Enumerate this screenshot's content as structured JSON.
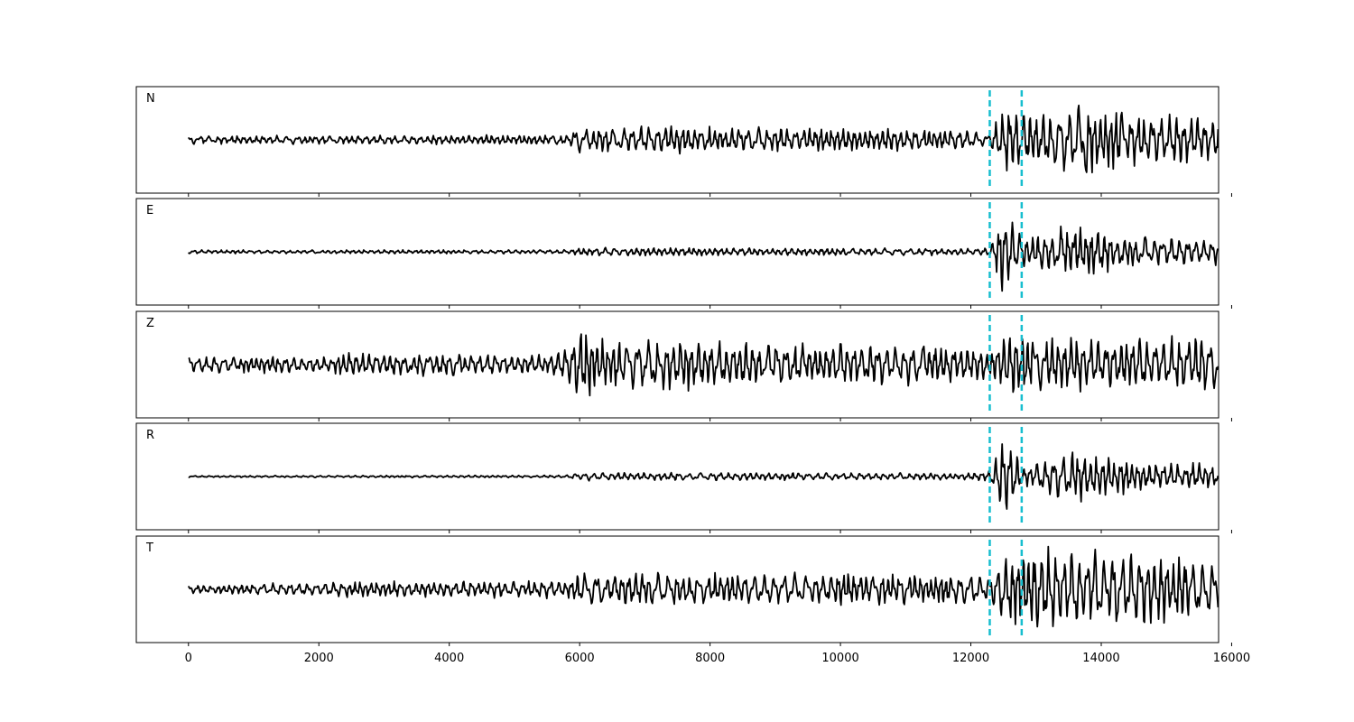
{
  "chart_data": {
    "type": "line",
    "title": "",
    "xlabel": "",
    "ylabel": "",
    "xlim": [
      -800,
      15800
    ],
    "xticks": [
      0,
      2000,
      4000,
      6000,
      8000,
      10000,
      12000,
      14000,
      16000
    ],
    "xtick_labels": [
      "0",
      "2000",
      "4000",
      "6000",
      "8000",
      "10000",
      "12000",
      "14000",
      "16000"
    ],
    "n_samples": 15800,
    "grid": false,
    "trace_color": "#000000",
    "marker_color": "#17becf",
    "markers": [
      {
        "type": "vertical-dashed-line",
        "x": 12290
      },
      {
        "type": "vertical-dashed-line",
        "x": 12780
      }
    ],
    "panels": [
      {
        "label": "N",
        "envelope": [
          [
            0,
            0.09
          ],
          [
            5800,
            0.12
          ],
          [
            6000,
            0.32
          ],
          [
            12000,
            0.25
          ],
          [
            12250,
            0.12
          ],
          [
            12600,
            0.9
          ],
          [
            13000,
            0.65
          ],
          [
            13600,
            0.9
          ],
          [
            14500,
            0.6
          ],
          [
            15800,
            0.55
          ]
        ]
      },
      {
        "label": "E",
        "envelope": [
          [
            0,
            0.04
          ],
          [
            5800,
            0.05
          ],
          [
            6000,
            0.1
          ],
          [
            12000,
            0.08
          ],
          [
            12300,
            0.1
          ],
          [
            12500,
            0.95
          ],
          [
            12800,
            0.35
          ],
          [
            13500,
            0.6
          ],
          [
            14500,
            0.35
          ],
          [
            15800,
            0.3
          ]
        ]
      },
      {
        "label": "Z",
        "envelope": [
          [
            0,
            0.2
          ],
          [
            2200,
            0.2
          ],
          [
            2400,
            0.3
          ],
          [
            5500,
            0.22
          ],
          [
            5800,
            0.4
          ],
          [
            6000,
            0.95
          ],
          [
            6300,
            0.6
          ],
          [
            12000,
            0.45
          ],
          [
            12300,
            0.4
          ],
          [
            12600,
            0.95
          ],
          [
            13000,
            0.6
          ],
          [
            15800,
            0.65
          ]
        ]
      },
      {
        "label": "R",
        "envelope": [
          [
            0,
            0.02
          ],
          [
            5800,
            0.03
          ],
          [
            6000,
            0.1
          ],
          [
            12000,
            0.08
          ],
          [
            12300,
            0.15
          ],
          [
            12500,
            0.98
          ],
          [
            12800,
            0.25
          ],
          [
            13500,
            0.6
          ],
          [
            14500,
            0.35
          ],
          [
            15800,
            0.3
          ]
        ]
      },
      {
        "label": "T",
        "envelope": [
          [
            0,
            0.1
          ],
          [
            2600,
            0.18
          ],
          [
            5800,
            0.2
          ],
          [
            6000,
            0.4
          ],
          [
            12000,
            0.35
          ],
          [
            12300,
            0.35
          ],
          [
            12500,
            0.85
          ],
          [
            13300,
            0.95
          ],
          [
            14500,
            0.9
          ],
          [
            15800,
            0.65
          ]
        ]
      }
    ]
  }
}
